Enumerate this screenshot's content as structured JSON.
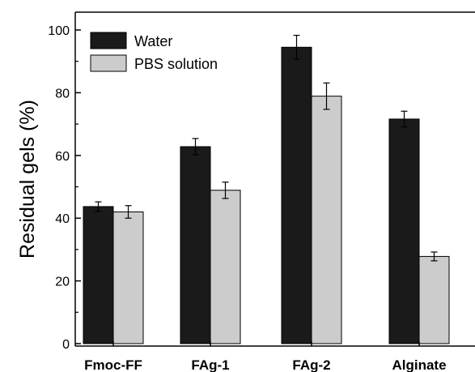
{
  "chart_data": {
    "type": "bar",
    "categories": [
      "Fmoc-FF",
      "FAg-1",
      "FAg-2",
      "Alginate"
    ],
    "series": [
      {
        "name": "Water",
        "values": [
          43.7,
          62.8,
          94.5,
          71.6
        ],
        "errors": [
          1.5,
          2.6,
          3.8,
          2.5
        ],
        "color": "#1a1a1a"
      },
      {
        "name": "PBS solution",
        "values": [
          42.0,
          48.9,
          78.9,
          27.8
        ],
        "errors": [
          2.0,
          2.6,
          4.2,
          1.4
        ],
        "color": "#cccccc"
      }
    ],
    "ylabel": "Residual gels (%)",
    "xlabel": "",
    "ylim": [
      0,
      100
    ],
    "yticks": [
      "0",
      "20",
      "40",
      "60",
      "80",
      "100"
    ],
    "legend": "top-left",
    "grid": false
  }
}
